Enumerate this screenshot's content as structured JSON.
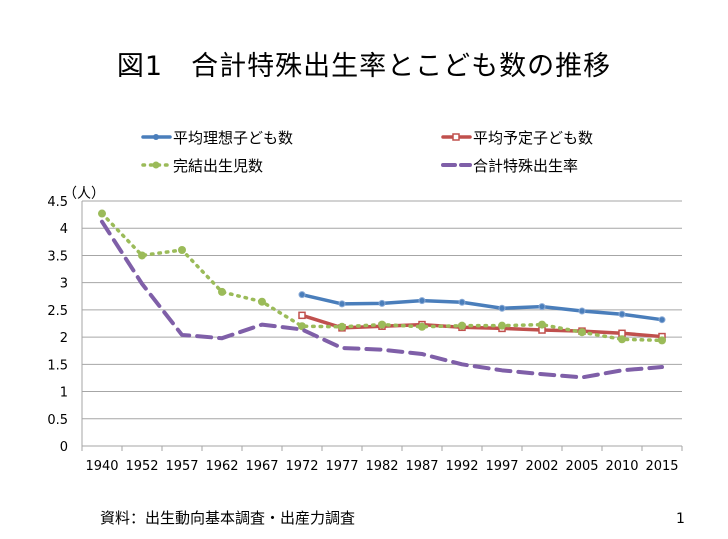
{
  "title": "図1　合計特殊出生率とこども数の推移",
  "source": "資料：出生動向基本調査・出産力調査",
  "page_number": "1",
  "chart_data": {
    "type": "line",
    "title": "図1　合計特殊出生率とこども数の推移",
    "ylabel": "（人）",
    "xlabel": "",
    "ylim": [
      0,
      4.5
    ],
    "yticks": [
      "0",
      "0.5",
      "1",
      "1.5",
      "2",
      "2.5",
      "3",
      "3.5",
      "4",
      "4.5"
    ],
    "grid": true,
    "legend": "top",
    "categories": [
      "1940",
      "1952",
      "1957",
      "1962",
      "1967",
      "1972",
      "1977",
      "1982",
      "1987",
      "1992",
      "1997",
      "2002",
      "2005",
      "2010",
      "2015"
    ],
    "series": [
      {
        "name": "平均理想子ども数",
        "color": "#4a7ebb",
        "style": "solid",
        "marker": "diamond",
        "values": [
          null,
          null,
          null,
          null,
          null,
          2.78,
          2.61,
          2.62,
          2.67,
          2.64,
          2.53,
          2.56,
          2.48,
          2.42,
          2.32
        ]
      },
      {
        "name": "平均予定子ども数",
        "color": "#c0504d",
        "style": "solid",
        "marker": "square",
        "values": [
          null,
          null,
          null,
          null,
          null,
          2.4,
          2.17,
          2.2,
          2.23,
          2.18,
          2.16,
          2.13,
          2.11,
          2.07,
          2.01
        ]
      },
      {
        "name": "完結出生児数",
        "color": "#9bbb59",
        "style": "dotted",
        "marker": "circle",
        "values": [
          4.27,
          3.5,
          3.6,
          2.83,
          2.65,
          2.2,
          2.19,
          2.23,
          2.19,
          2.21,
          2.21,
          2.23,
          2.09,
          1.96,
          1.94
        ]
      },
      {
        "name": "合計特殊出生率",
        "color": "#7f5fa8",
        "style": "dashed",
        "marker": "none",
        "values": [
          4.12,
          2.98,
          2.04,
          1.98,
          2.23,
          2.14,
          1.8,
          1.77,
          1.69,
          1.5,
          1.39,
          1.32,
          1.26,
          1.39,
          1.45
        ]
      }
    ]
  }
}
